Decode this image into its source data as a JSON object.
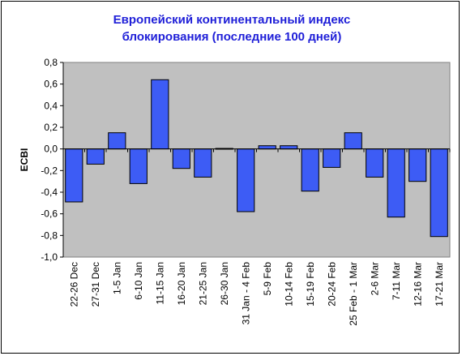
{
  "chart_data": {
    "type": "bar",
    "title_line1": "Европейский континентальный индекс",
    "title_line2": "блокирования (последние 100 дней)",
    "xlabel": "",
    "ylabel": "ECBI",
    "ylim": [
      -1.0,
      0.8
    ],
    "ytick_step": 0.2,
    "ytick_labels": [
      "0,8",
      "0,6",
      "0,4",
      "0,2",
      "0,0",
      "-0,2",
      "-0,4",
      "-0,6",
      "-0,8",
      "-1,0"
    ],
    "grid": false,
    "legend": false,
    "categories": [
      "22-26 Dec",
      "27-31 Dec",
      "1-5 Jan",
      "6-10 Jan",
      "11-15 Jan",
      "16-20 Jan",
      "21-25 Jan",
      "26-30 Jan",
      "31 Jan - 4 Feb",
      "5-9 Feb",
      "10-14 Feb",
      "15-19 Feb",
      "20-24 Feb",
      "25 Feb - 1 Mar",
      "2-6 Mar",
      "7-11 Mar",
      "12-16 Mar",
      "17-21 Mar"
    ],
    "values": [
      -0.49,
      -0.14,
      0.15,
      -0.32,
      0.64,
      -0.18,
      -0.26,
      0.005,
      -0.58,
      0.03,
      0.03,
      -0.39,
      -0.17,
      0.15,
      -0.26,
      -0.63,
      -0.3,
      -0.81
    ],
    "colors": {
      "bar_fill": "#3d5cf5",
      "bar_stroke": "#000000",
      "plot_background": "#c0c0c0",
      "title": "#1f1fd8"
    }
  }
}
